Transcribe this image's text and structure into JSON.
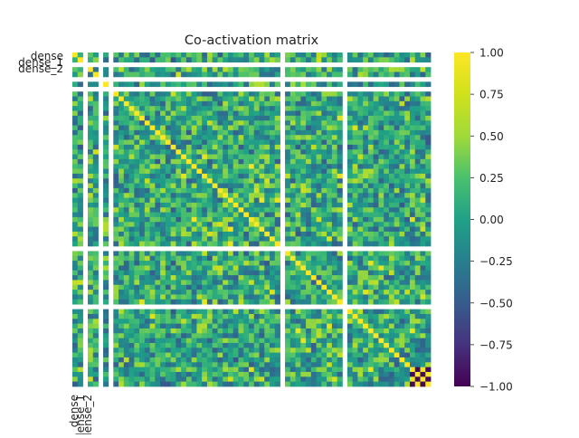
{
  "chart_data": {
    "type": "heatmap",
    "title": "Co-activation matrix",
    "xlabel": "",
    "ylabel": "",
    "row_labels": [
      "dense",
      "dense_1",
      "dense_2"
    ],
    "col_labels": [
      "dense",
      "dense_1",
      "dense_2"
    ],
    "colormap": "viridis",
    "value_range": [
      -1,
      1
    ],
    "colorbar_ticks": [
      "1.00",
      "0.75",
      "0.50",
      "0.25",
      "0.00",
      "−0.25",
      "−0.50",
      "−0.75",
      "−1.00"
    ],
    "colorbar_tick_values": [
      1.0,
      0.75,
      0.5,
      0.25,
      0.0,
      -0.25,
      -0.5,
      -0.75,
      -1.0
    ],
    "blocks": [
      {
        "name": "dense",
        "units": 2
      },
      {
        "name": "dense_1",
        "units": 2
      },
      {
        "name": "dense_2",
        "units": 1
      },
      {
        "name": "",
        "units": 32
      },
      {
        "name": "",
        "units": 11
      },
      {
        "name": "",
        "units": 16
      }
    ],
    "grid": false,
    "legend": "colorbar-right"
  }
}
